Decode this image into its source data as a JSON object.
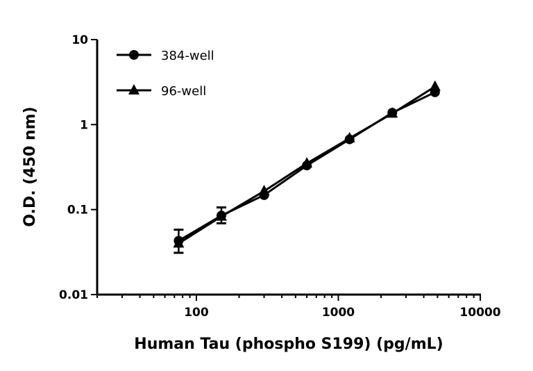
{
  "chart_data": {
    "type": "line",
    "title": "",
    "xlabel": "Human Tau (phospho S199) (pg/mL)",
    "ylabel": "O.D. (450 nm)",
    "xscale": "log",
    "yscale": "log",
    "xlim": [
      20,
      10000
    ],
    "ylim": [
      0.01,
      10
    ],
    "xticks": [
      "100",
      "1000",
      "10000"
    ],
    "yticks": [
      "0.01",
      "0.1",
      "1",
      "10"
    ],
    "grid": false,
    "legend_position": "top-left",
    "x": [
      75,
      150,
      300,
      600,
      1200,
      2400,
      4800
    ],
    "series": [
      {
        "name": "384-well",
        "marker": "circle",
        "color": "#000000",
        "values": [
          0.043,
          0.085,
          0.148,
          0.33,
          0.67,
          1.38,
          2.4
        ],
        "error_low": [
          0.031,
          0.069,
          null,
          null,
          null,
          null,
          null
        ],
        "error_high": [
          0.058,
          0.106,
          null,
          null,
          null,
          null,
          null
        ]
      },
      {
        "name": "96-well",
        "marker": "triangle",
        "color": "#000000",
        "values": [
          0.04,
          0.083,
          0.165,
          0.35,
          0.69,
          1.35,
          2.8
        ]
      }
    ]
  }
}
